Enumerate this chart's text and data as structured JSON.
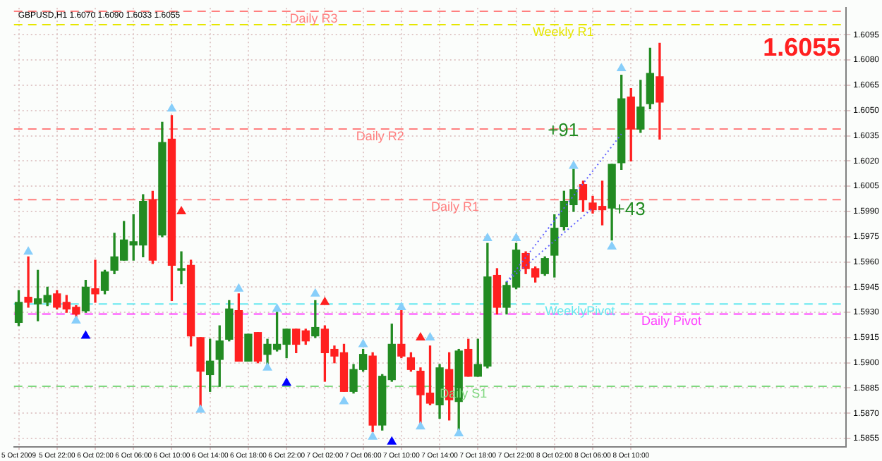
{
  "chart_data": {
    "type": "candlestick",
    "title": "GBPUSD,H1 1.6070 1.6090 1.6033 1.6055",
    "categories": [
      "5 Oct 2009",
      null,
      null,
      null,
      "5 Oct 22:00",
      null,
      null,
      null,
      "6 Oct 02:00",
      null,
      null,
      null,
      "6 Oct 06:00",
      null,
      null,
      null,
      "6 Oct 10:00",
      null,
      null,
      null,
      "6 Oct 14:00",
      null,
      null,
      null,
      "6 Oct 18:00",
      null,
      null,
      null,
      "6 Oct 22:00",
      null,
      null,
      null,
      "7 Oct 02:00",
      null,
      null,
      null,
      "7 Oct 06:00",
      null,
      null,
      null,
      "7 Oct 10:00",
      null,
      null,
      null,
      "7 Oct 14:00",
      null,
      null,
      null,
      "7 Oct 18:00",
      null,
      null,
      null,
      "7 Oct 22:00",
      null,
      null,
      null,
      "8 Oct 02:00",
      null,
      null,
      null,
      "8 Oct 06:00",
      null,
      null,
      null,
      "8 Oct 10:00",
      null,
      null,
      null,
      null,
      null,
      null,
      null,
      null,
      null,
      null,
      null,
      null,
      null,
      null,
      null,
      null,
      null,
      null,
      null,
      null,
      null,
      null
    ],
    "ohlc": [
      [
        1.5924,
        1.5943,
        1.5922,
        1.5936
      ],
      [
        1.5939,
        1.5963,
        1.5933,
        1.5936
      ],
      [
        1.5935,
        1.5955,
        1.5925,
        1.5938
      ],
      [
        1.5936,
        1.5945,
        1.5934,
        1.594
      ],
      [
        1.5941,
        1.5943,
        1.5932,
        1.5933
      ],
      [
        1.5936,
        1.594,
        1.593,
        1.5932
      ],
      [
        1.5933,
        1.5934,
        1.5926,
        1.5929
      ],
      [
        1.5931,
        1.5949,
        1.593,
        1.5945
      ],
      [
        1.5944,
        1.5961,
        1.5936,
        1.5941
      ],
      [
        1.5943,
        1.5955,
        1.5941,
        1.5954
      ],
      [
        1.5955,
        1.5977,
        1.5953,
        1.5963
      ],
      [
        1.5961,
        1.5984,
        1.5961,
        1.5973
      ],
      [
        1.597,
        1.5988,
        1.5961,
        1.5972
      ],
      [
        1.597,
        1.6,
        1.5963,
        1.5996
      ],
      [
        1.5997,
        1.6002,
        1.5959,
        1.5961
      ],
      [
        1.5976,
        1.6043,
        1.5975,
        1.6031
      ],
      [
        1.6033,
        1.6047,
        1.5937,
        1.5958
      ],
      [
        1.5955,
        1.5966,
        1.5947,
        1.5956
      ],
      [
        1.5958,
        1.5961,
        1.591,
        1.5916
      ],
      [
        1.5915,
        1.5915,
        1.5873,
        1.5895
      ],
      [
        1.5893,
        1.5914,
        1.5883,
        1.5901
      ],
      [
        1.5902,
        1.5922,
        1.5886,
        1.5913
      ],
      [
        1.5914,
        1.5937,
        1.5913,
        1.5932
      ],
      [
        1.5931,
        1.5941,
        1.5901,
        1.5901
      ],
      [
        1.5901,
        1.5917,
        1.5901,
        1.5917
      ],
      [
        1.5918,
        1.5918,
        1.59,
        1.5901
      ],
      [
        1.5905,
        1.5914,
        1.5897,
        1.5911
      ],
      [
        1.5908,
        1.593,
        1.5907,
        1.5911
      ],
      [
        1.5911,
        1.592,
        1.5903,
        1.592
      ],
      [
        1.592,
        1.592,
        1.5906,
        1.5911
      ],
      [
        1.5919,
        1.592,
        1.5911,
        1.5913
      ],
      [
        1.5916,
        1.5937,
        1.5915,
        1.5921
      ],
      [
        1.592,
        1.5922,
        1.5889,
        1.5906
      ],
      [
        1.5908,
        1.591,
        1.59,
        1.5904
      ],
      [
        1.5906,
        1.5911,
        1.5883,
        1.5883
      ],
      [
        1.5883,
        1.5899,
        1.5882,
        1.5896
      ],
      [
        1.5896,
        1.5908,
        1.5895,
        1.5905
      ],
      [
        1.5904,
        1.5906,
        1.5859,
        1.5863
      ],
      [
        1.5863,
        1.5893,
        1.586,
        1.5892
      ],
      [
        1.589,
        1.5923,
        1.5889,
        1.5911
      ],
      [
        1.5911,
        1.5933,
        1.5903,
        1.5904
      ],
      [
        1.5903,
        1.5906,
        1.5895,
        1.5896
      ],
      [
        1.5895,
        1.5897,
        1.5864,
        1.5881
      ],
      [
        1.5882,
        1.591,
        1.5875,
        1.5876
      ],
      [
        1.5875,
        1.5899,
        1.5867,
        1.5897
      ],
      [
        1.5896,
        1.5906,
        1.5866,
        1.5878
      ],
      [
        1.5877,
        1.5908,
        1.5859,
        1.5907
      ],
      [
        1.5908,
        1.5914,
        1.5892,
        1.5892
      ],
      [
        1.5892,
        1.5914,
        1.5892,
        1.5899
      ],
      [
        1.5898,
        1.5971,
        1.5897,
        1.5951
      ],
      [
        1.5952,
        1.5956,
        1.5929,
        1.5933
      ],
      [
        1.5933,
        1.5948,
        1.5929,
        1.5946
      ],
      [
        1.5945,
        1.5971,
        1.5944,
        1.5967
      ],
      [
        1.5965,
        1.5966,
        1.5953,
        1.5956
      ],
      [
        1.5956,
        1.5957,
        1.5948,
        1.5951
      ],
      [
        1.5953,
        1.5963,
        1.5952,
        1.5962
      ],
      [
        1.5964,
        1.5988,
        1.5951,
        1.598
      ],
      [
        1.5981,
        1.6002,
        1.5979,
        1.5996
      ],
      [
        1.5994,
        1.6015,
        1.599,
        1.6003
      ],
      [
        1.6006,
        1.6008,
        1.599,
        1.5997
      ],
      [
        1.5995,
        1.5999,
        1.5989,
        1.5991
      ],
      [
        1.5993,
        1.6008,
        1.5982,
        1.5991
      ],
      [
        1.5992,
        1.6018,
        1.5973,
        1.6018
      ],
      [
        1.6019,
        1.6071,
        1.6015,
        1.6057
      ],
      [
        1.6058,
        1.6063,
        1.602,
        1.6039
      ],
      [
        1.6039,
        1.6068,
        1.6037,
        1.6052
      ],
      [
        1.6054,
        1.6087,
        1.6051,
        1.6072
      ],
      [
        1.607,
        1.609,
        1.6033,
        1.6055
      ],
      null,
      null,
      null,
      null,
      null,
      null,
      null,
      null,
      null,
      null,
      null,
      null,
      null,
      null,
      null,
      null,
      null,
      null,
      null
    ],
    "colors": [
      "#228b22",
      "#ff2020",
      "#228b22",
      "#228b22",
      "#ff2020",
      "#ff2020",
      "#ff2020",
      "#228b22",
      "#ff2020",
      "#228b22",
      "#228b22",
      "#228b22",
      "#228b22",
      "#228b22",
      "#ff2020",
      "#228b22",
      "#ff2020",
      "#228b22",
      "#ff2020",
      "#ff2020",
      "#228b22",
      "#228b22",
      "#228b22",
      "#ff2020",
      "#228b22",
      "#ff2020",
      "#228b22",
      "#228b22",
      "#228b22",
      "#ff2020",
      "#ff2020",
      "#228b22",
      "#ff2020",
      "#ff2020",
      "#ff2020",
      "#228b22",
      "#228b22",
      "#ff2020",
      "#228b22",
      "#228b22",
      "#ff2020",
      "#ff2020",
      "#ff2020",
      "#ff2020",
      "#228b22",
      "#ff2020",
      "#228b22",
      "#ff2020",
      "#228b22",
      "#228b22",
      "#ff2020",
      "#228b22",
      "#228b22",
      "#ff2020",
      "#ff2020",
      "#228b22",
      "#228b22",
      "#228b22",
      "#228b22",
      "#ff2020",
      "#ff2020",
      "#ff2020",
      "#228b22",
      "#228b22",
      "#ff2020",
      "#228b22",
      "#228b22",
      "#ff2020",
      null,
      null,
      null,
      null,
      null,
      null,
      null,
      null,
      null,
      null,
      null,
      null,
      null,
      null,
      null,
      null,
      null,
      null,
      null
    ],
    "series": [
      {
        "type": "scatter",
        "marker": "triangle",
        "color": "#87cefa",
        "values": [
          null,
          1.5966,
          null,
          null,
          null,
          null,
          null,
          null,
          null,
          null,
          null,
          null,
          null,
          null,
          null,
          null,
          1.6051,
          null,
          null,
          null,
          null,
          null,
          null,
          1.5944,
          null,
          null,
          null,
          1.5932,
          null,
          null,
          null,
          1.5941,
          null,
          null,
          null,
          null,
          1.5911,
          null,
          null,
          null,
          1.5933,
          null,
          null,
          1.5915,
          null,
          null,
          null,
          null,
          null,
          1.5974,
          null,
          null,
          1.5974,
          null,
          null,
          null,
          null,
          null,
          1.6017,
          null,
          null,
          null,
          null,
          1.6075,
          null,
          null,
          null,
          null,
          null,
          null,
          null,
          null,
          null,
          null,
          null,
          null,
          null,
          null,
          null,
          null,
          null,
          null,
          null,
          null,
          null,
          null,
          null
        ]
      },
      {
        "type": "scatter",
        "marker": "triangle",
        "color": "#87cefa",
        "values": [
          null,
          null,
          null,
          null,
          null,
          null,
          1.5925,
          null,
          null,
          null,
          null,
          null,
          null,
          null,
          null,
          null,
          null,
          null,
          null,
          1.5872,
          null,
          null,
          null,
          null,
          null,
          null,
          1.5897,
          null,
          null,
          null,
          null,
          null,
          null,
          null,
          1.5877,
          null,
          null,
          1.5856,
          null,
          null,
          null,
          null,
          1.5862,
          null,
          null,
          null,
          1.5858,
          null,
          null,
          null,
          null,
          null,
          null,
          null,
          null,
          null,
          null,
          null,
          null,
          null,
          null,
          null,
          1.5969,
          null,
          null,
          null,
          null,
          null,
          null,
          null,
          null,
          null,
          null,
          null,
          null,
          null,
          null,
          null,
          null,
          null,
          null,
          null,
          null,
          null,
          null,
          null,
          null
        ]
      },
      {
        "type": "scatter",
        "marker": "triangle",
        "color": "#0000ff",
        "values": [
          null,
          null,
          null,
          null,
          null,
          null,
          null,
          1.5916,
          null,
          null,
          null,
          null,
          null,
          null,
          null,
          null,
          null,
          null,
          null,
          null,
          null,
          null,
          null,
          null,
          null,
          null,
          null,
          null,
          1.5888,
          null,
          null,
          null,
          null,
          null,
          null,
          null,
          null,
          null,
          null,
          1.5853,
          null,
          null,
          null,
          null,
          null,
          null,
          null,
          null,
          null,
          null,
          null,
          null,
          null,
          null,
          null,
          null,
          null,
          null,
          null,
          null,
          null,
          null,
          null,
          null,
          null,
          null,
          null,
          null,
          null,
          null,
          null,
          null,
          null,
          null,
          null,
          null,
          null,
          null,
          null,
          null,
          null,
          null,
          null,
          null,
          null,
          null,
          null
        ]
      },
      {
        "type": "scatter",
        "marker": "triangle",
        "color": "#ff2020",
        "values": [
          null,
          null,
          null,
          null,
          null,
          null,
          null,
          null,
          null,
          null,
          null,
          null,
          null,
          null,
          null,
          null,
          null,
          1.599,
          null,
          null,
          null,
          null,
          null,
          null,
          null,
          null,
          null,
          null,
          null,
          null,
          null,
          null,
          1.5936,
          null,
          null,
          null,
          null,
          null,
          null,
          null,
          null,
          null,
          1.5915,
          null,
          null,
          null,
          null,
          null,
          null,
          null,
          null,
          null,
          null,
          null,
          null,
          null,
          null,
          null,
          null,
          null,
          null,
          null,
          null,
          null,
          null,
          null,
          null,
          null,
          null,
          null,
          null,
          null,
          null,
          null,
          null,
          null,
          null,
          null,
          null,
          null,
          null,
          null,
          null,
          null,
          null,
          null,
          null
        ]
      },
      {
        "type": "line",
        "marker": "none",
        "color": "#6060ff",
        "values": [
          null,
          null,
          null,
          null,
          null,
          null,
          null,
          null,
          null,
          null,
          null,
          null,
          null,
          null,
          null,
          null,
          null,
          null,
          null,
          null,
          null,
          null,
          null,
          null,
          null,
          null,
          null,
          null,
          null,
          null,
          null,
          null,
          null,
          null,
          null,
          null,
          null,
          null,
          null,
          null,
          null,
          null,
          null,
          null,
          null,
          null,
          null,
          null,
          null,
          null,
          null,
          1.5948,
          null,
          null,
          null,
          null,
          null,
          null,
          null,
          null,
          null,
          null,
          null,
          1.6036,
          null,
          null,
          null,
          null,
          null,
          null,
          null,
          null,
          null,
          null,
          null,
          null,
          null,
          null,
          null,
          null,
          null,
          null,
          null,
          null,
          null,
          null,
          null
        ]
      },
      {
        "type": "line",
        "marker": "none",
        "color": "#6060ff",
        "values": [
          null,
          null,
          null,
          null,
          null,
          null,
          null,
          null,
          null,
          null,
          null,
          null,
          null,
          null,
          null,
          null,
          null,
          null,
          null,
          null,
          null,
          null,
          null,
          null,
          null,
          null,
          null,
          null,
          null,
          null,
          null,
          null,
          null,
          null,
          null,
          null,
          null,
          null,
          null,
          null,
          null,
          null,
          null,
          null,
          null,
          null,
          null,
          null,
          null,
          null,
          null,
          1.5948,
          null,
          null,
          null,
          null,
          null,
          null,
          null,
          null,
          1.5992,
          null,
          null,
          null,
          null,
          null,
          null,
          null,
          null,
          null,
          null,
          null,
          null,
          null,
          null,
          null,
          null,
          null,
          null,
          null,
          null,
          null,
          null,
          null,
          null,
          null,
          null
        ]
      }
    ],
    "ylim": [
      1.585,
      1.6111
    ],
    "yticks": [
      1.5855,
      {
        "value": 1.587,
        "label": "1.5870"
      },
      1.5885,
      {
        "value": 1.59,
        "label": "1.5900"
      },
      1.5915,
      {
        "value": 1.593,
        "label": "1.5930"
      },
      1.5945,
      {
        "value": 1.596,
        "label": "1.5960"
      },
      1.5975,
      {
        "value": 1.599,
        "label": "1.5990"
      },
      1.6005,
      {
        "value": 1.602,
        "label": "1.6020"
      },
      1.6035,
      {
        "value": 1.605,
        "label": "1.6050"
      },
      1.6065,
      {
        "value": 1.608,
        "label": "1.6080"
      },
      1.6095
    ],
    "grid": true,
    "line_style": "dotted",
    "ref_lines": [
      {
        "axis": "y",
        "value": 1.6109,
        "label": "Daily R3",
        "color": "#ff8080",
        "line_style": "dashed"
      },
      {
        "axis": "y",
        "value": 1.6101,
        "label": "Weekly R1",
        "color": "#e6e600",
        "line_style": "dashed"
      },
      {
        "axis": "y",
        "value": 1.6039,
        "label": "Daily R2",
        "color": "#ff8080",
        "line_style": "dashed"
      },
      {
        "axis": "y",
        "value": 1.5997,
        "label": "Daily R1",
        "color": "#ff8080",
        "line_style": "dashed"
      },
      {
        "axis": "y",
        "value": 1.5935,
        "label": "WeeklyPivot",
        "color": "#66e8f0",
        "line_style": "dashed"
      },
      {
        "axis": "y",
        "value": 1.5929,
        "label": "Daily Pivot",
        "color": "#ff40ff",
        "line_style": "dashed"
      },
      {
        "axis": "y",
        "value": 1.5886,
        "label": "Daily S1",
        "color": "#80d880",
        "line_style": "dashed"
      }
    ],
    "annotations": [
      "1.6055",
      "+91",
      "+43"
    ]
  }
}
